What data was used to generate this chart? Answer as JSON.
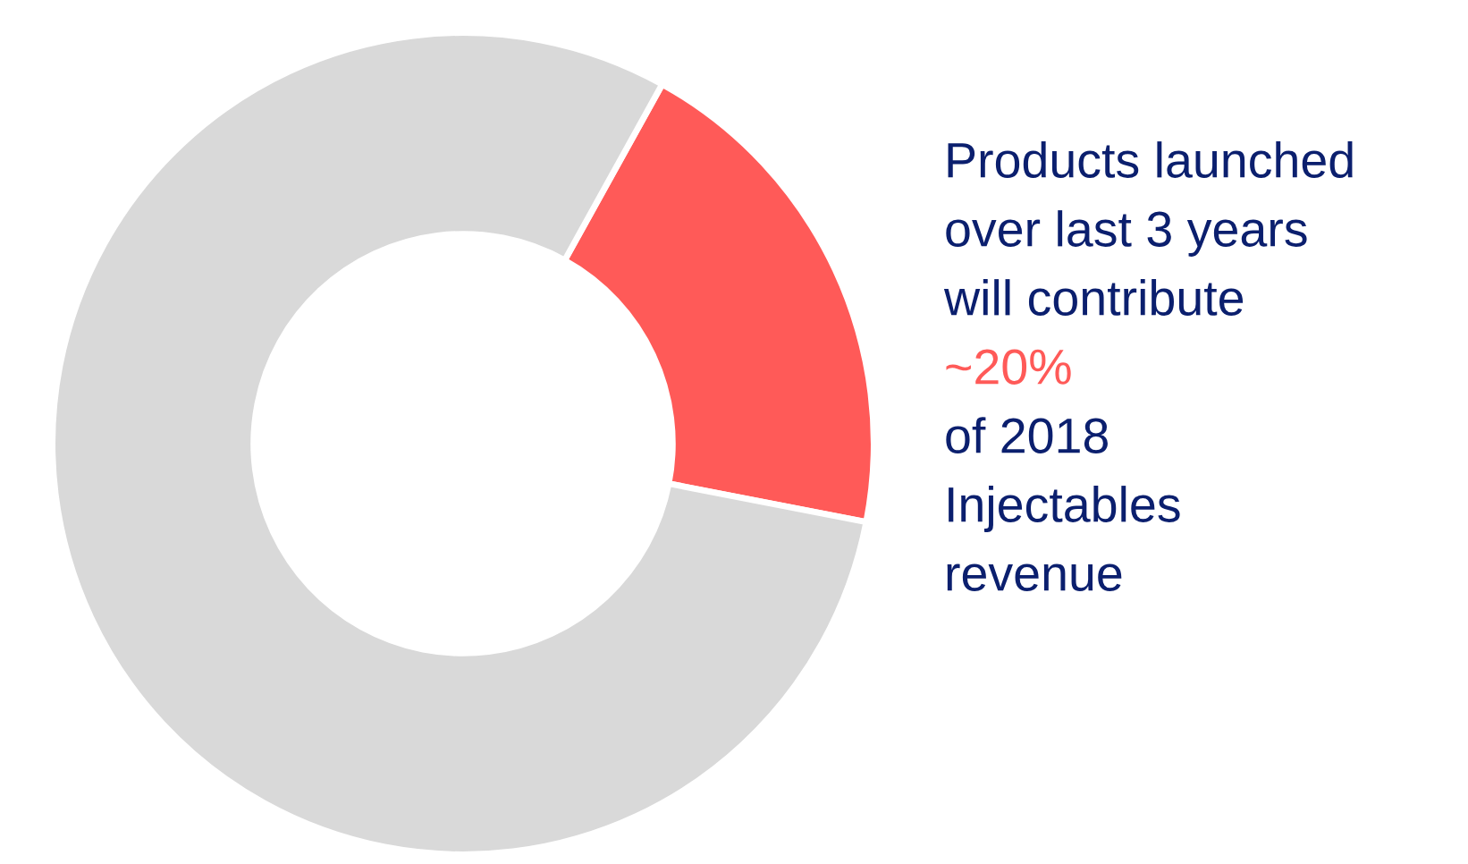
{
  "chart_data": {
    "type": "donut",
    "categories": [
      null,
      null
    ],
    "values": [
      20,
      80
    ],
    "colors": [
      "#ff5a58",
      "#d9d9d9"
    ],
    "value_labels": [
      "~20%",
      null
    ],
    "annotations": [
      "Products launched\nover last 3 years\nwill contribute",
      "of 2018\nInjectables\nrevenue"
    ]
  }
}
